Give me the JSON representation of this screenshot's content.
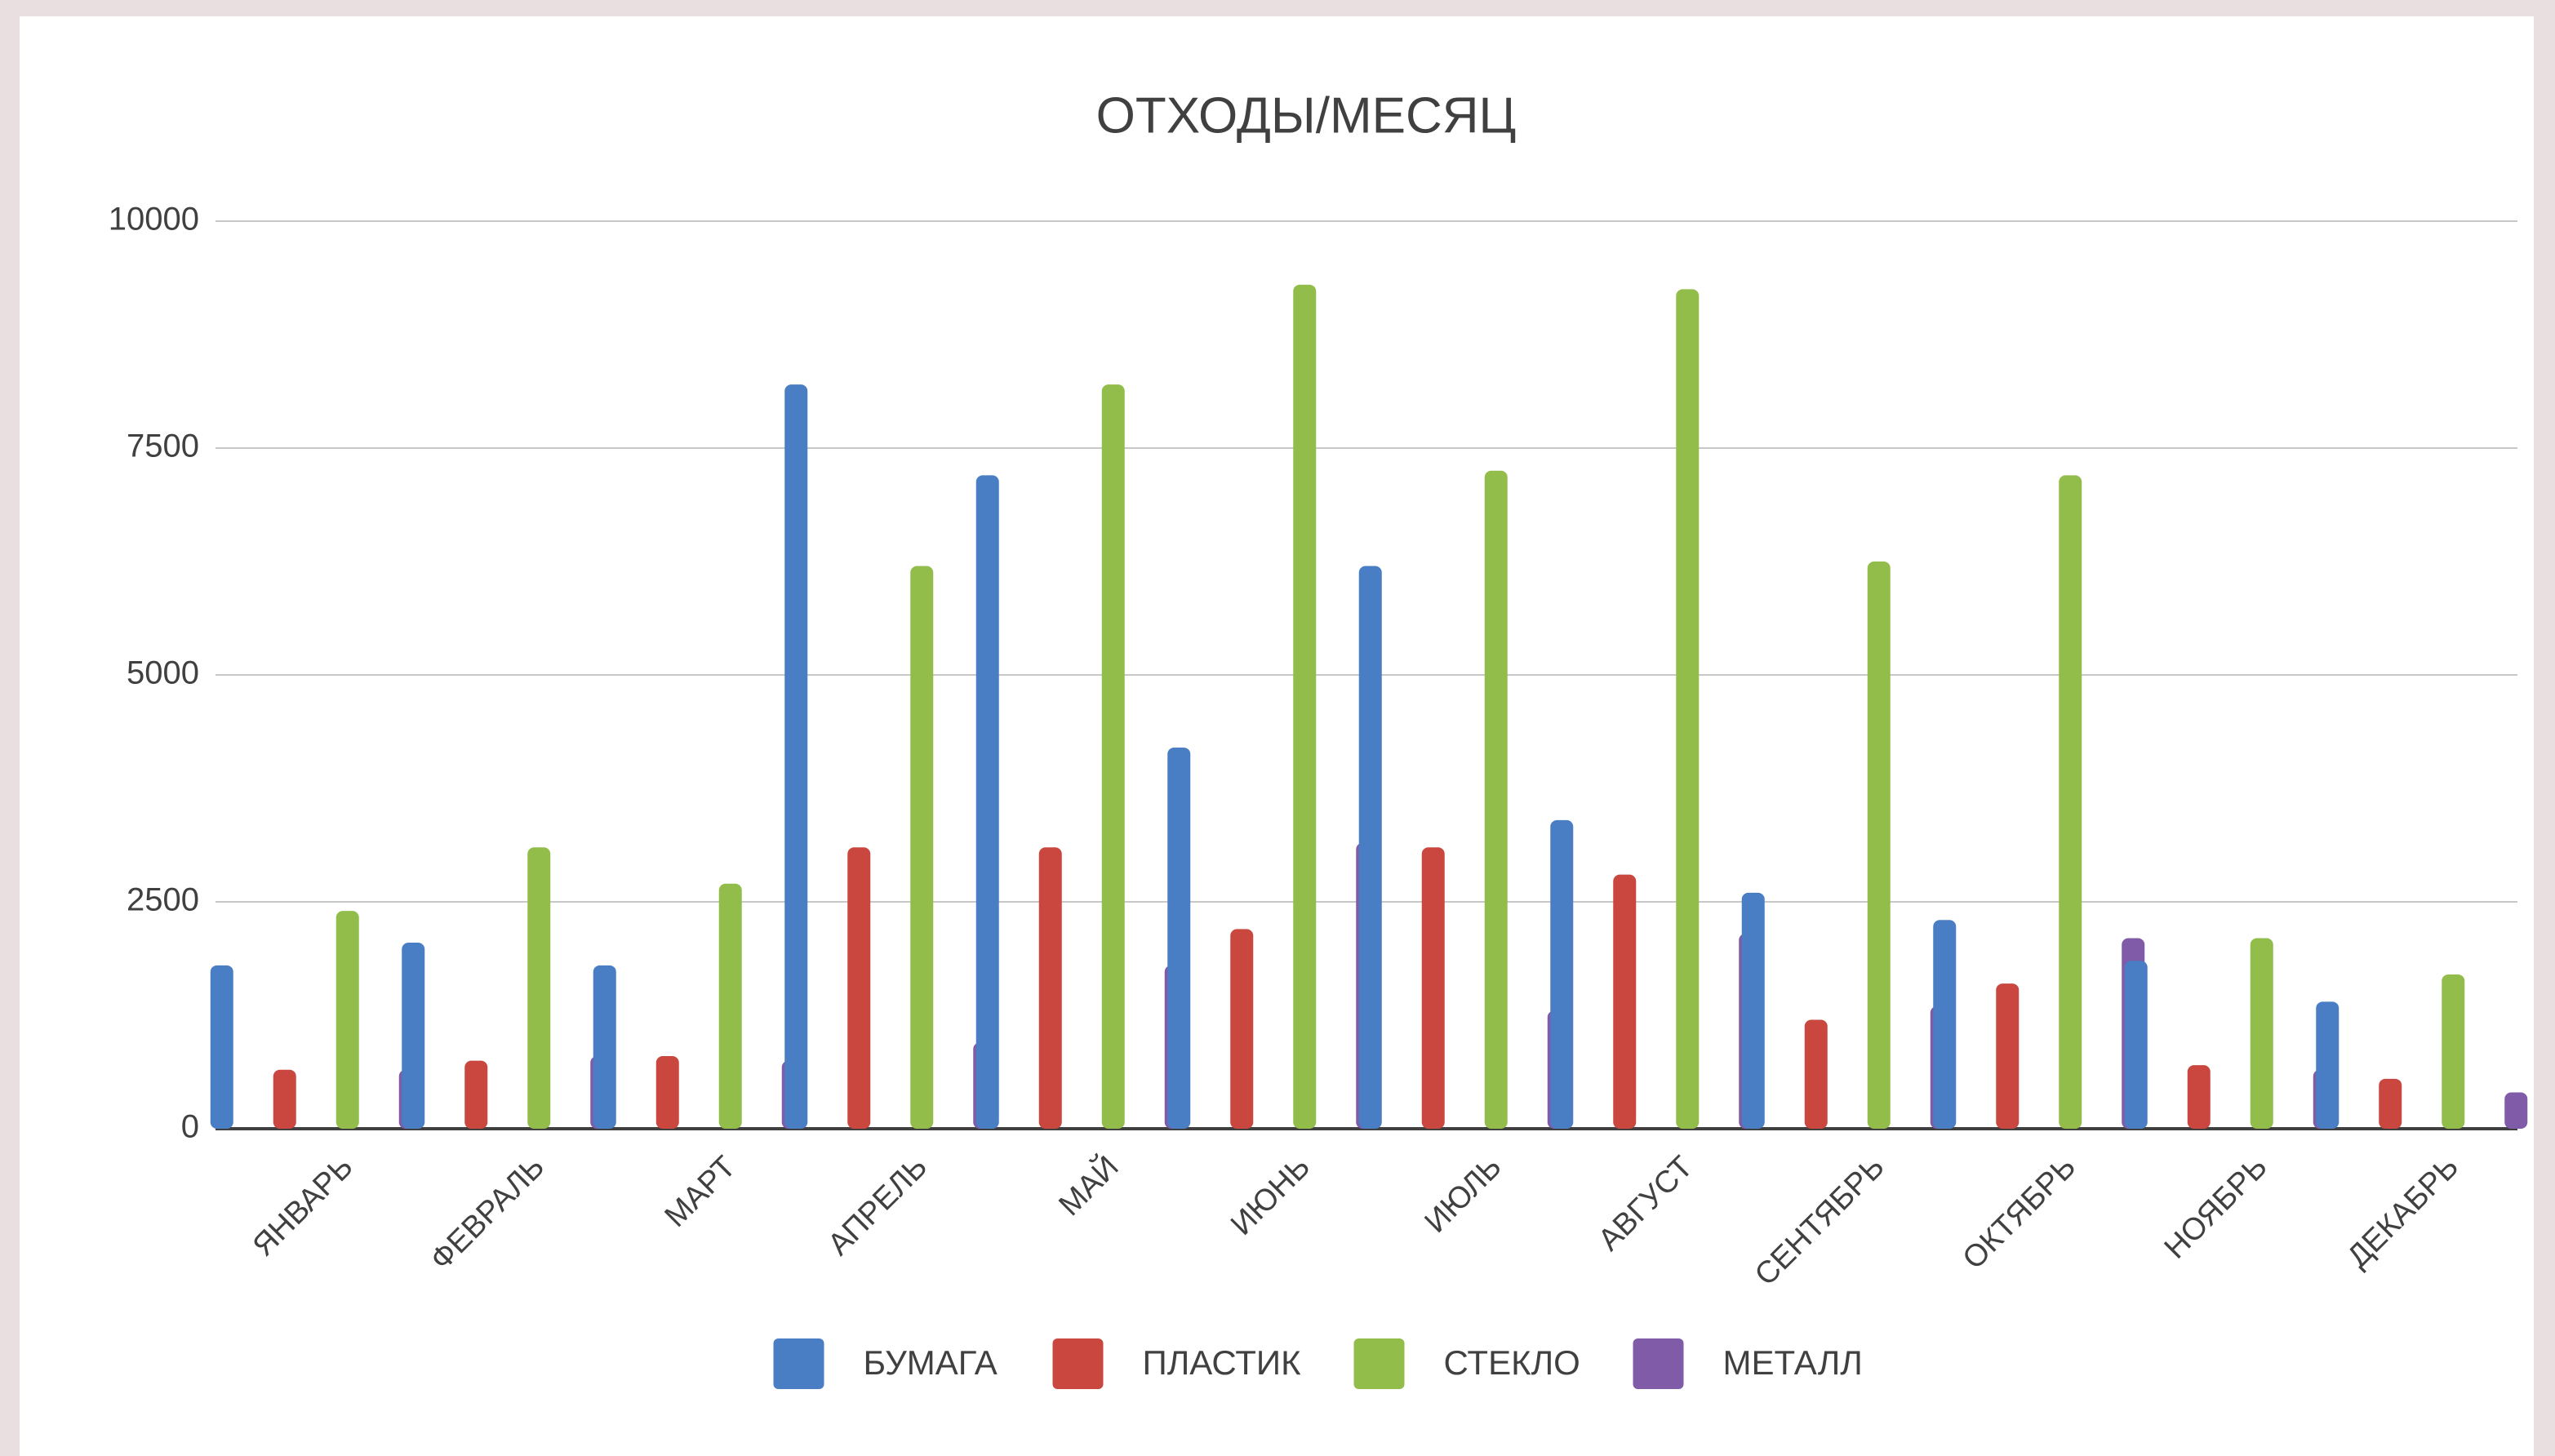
{
  "chart_data": {
    "type": "bar",
    "title": "ОТХОДЫ/МЕСЯЦ",
    "categories": [
      "ЯНВАРЬ",
      "ФЕВРАЛЬ",
      "МАРТ",
      "АПРЕЛЬ",
      "МАЙ",
      "ИЮНЬ",
      "ИЮЛЬ",
      "АВГУСТ",
      "СЕНТЯБРЬ",
      "ОКТЯБРЬ",
      "НОЯБРЬ",
      "ДЕКАБРЬ"
    ],
    "series": [
      {
        "name": "БУМАГА",
        "color": "#4a7ec4",
        "values": [
          1800,
          2050,
          1800,
          8200,
          7200,
          4200,
          6200,
          3400,
          2600,
          2300,
          1850,
          1400
        ]
      },
      {
        "name": "ПЛАСТИК",
        "color": "#c9473f",
        "values": [
          650,
          750,
          800,
          3100,
          3100,
          2200,
          3100,
          2800,
          1200,
          1600,
          700,
          550
        ]
      },
      {
        "name": "СТЕКЛО",
        "color": "#93bd4b",
        "values": [
          2400,
          3100,
          2700,
          6200,
          8200,
          9300,
          7250,
          9250,
          6250,
          7200,
          2100,
          1700
        ]
      },
      {
        "name": "МЕТАЛЛ",
        "color": "#7f5ba8",
        "values": [
          650,
          800,
          750,
          950,
          1800,
          3150,
          1300,
          2150,
          1350,
          2100,
          650,
          400
        ]
      }
    ],
    "ylim": [
      0,
      10000
    ],
    "yticks": [
      0,
      2500,
      5000,
      7500,
      10000
    ],
    "grid": true,
    "legend": "bottom"
  }
}
